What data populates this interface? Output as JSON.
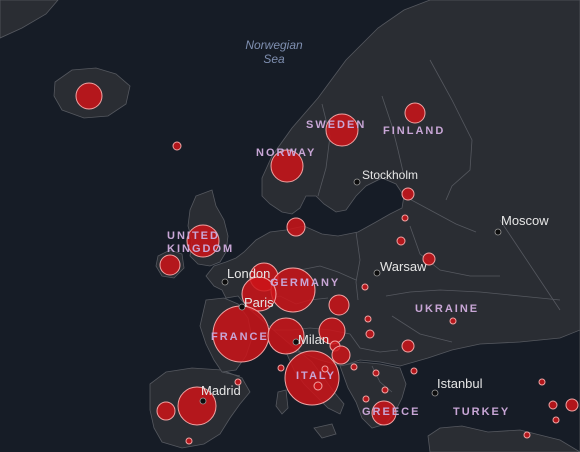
{
  "map": {
    "background": "#161c26",
    "land_color": "#2a2d33",
    "border_color": "#55585f",
    "bubble_fill": "#cc1419",
    "bubble_stroke": "#f0a3a3",
    "seas": [
      {
        "id": "norwegian-sea",
        "line1": "Norwegian",
        "line2": "Sea"
      }
    ],
    "countries": [
      {
        "id": "sweden",
        "label": "SWEDEN"
      },
      {
        "id": "finland",
        "label": "FINLAND"
      },
      {
        "id": "norway",
        "label": "NORWAY"
      },
      {
        "id": "uk",
        "line1": "UNITED",
        "line2": "KINGDOM"
      },
      {
        "id": "germany",
        "label": "GERMANY"
      },
      {
        "id": "france",
        "label": "FRANCE"
      },
      {
        "id": "italy",
        "label": "ITALY"
      },
      {
        "id": "ukraine",
        "label": "UKRAINE"
      },
      {
        "id": "greece",
        "label": "GREECE"
      },
      {
        "id": "turkey",
        "label": "TURKEY"
      }
    ],
    "cities": [
      {
        "id": "stockholm",
        "name": "Stockholm"
      },
      {
        "id": "moscow",
        "name": "Moscow"
      },
      {
        "id": "warsaw",
        "name": "Warsaw"
      },
      {
        "id": "london",
        "name": "London"
      },
      {
        "id": "paris",
        "name": "Paris"
      },
      {
        "id": "milan",
        "name": "Milan"
      },
      {
        "id": "madrid",
        "name": "Madrid"
      },
      {
        "id": "istanbul",
        "name": "Istanbul"
      }
    ]
  }
}
